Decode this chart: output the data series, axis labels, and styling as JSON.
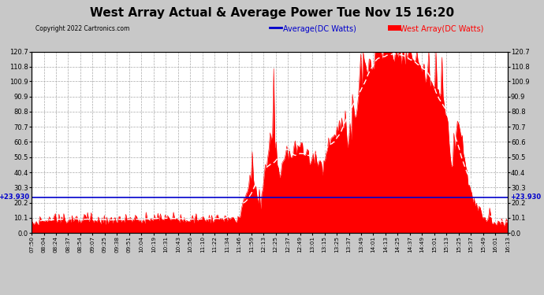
{
  "title": "West Array Actual & Average Power Tue Nov 15 16:20",
  "copyright": "Copyright 2022 Cartronics.com",
  "legend_avg": "Average(DC Watts)",
  "legend_west": "West Array(DC Watts)",
  "legend_avg_color": "#0000cc",
  "legend_west_color": "#ff0000",
  "fill_color": "#ff0000",
  "avg_line_color": "#ffffff",
  "background_color": "#c8c8c8",
  "plot_bg_color": "#ffffff",
  "grid_color": "#aaaaaa",
  "title_fontsize": 11,
  "ylim": [
    0.0,
    120.7
  ],
  "yticks": [
    0.0,
    10.1,
    20.2,
    30.3,
    40.4,
    50.5,
    60.6,
    70.7,
    80.8,
    90.9,
    100.9,
    110.8,
    120.7
  ],
  "ytick_labels": [
    "0.0",
    "10.1",
    "20.2",
    "30.3",
    "40.4",
    "50.5",
    "60.6",
    "70.7",
    "80.8",
    "90.9",
    "100.9",
    "110.8",
    "120.7"
  ],
  "horizontal_line_value": 23.93,
  "horizontal_line_label": "+23.930",
  "x_labels": [
    "07:50",
    "08:04",
    "08:24",
    "08:37",
    "08:54",
    "09:07",
    "09:25",
    "09:38",
    "09:51",
    "10:04",
    "10:19",
    "10:31",
    "10:43",
    "10:56",
    "11:10",
    "11:22",
    "11:34",
    "11:46",
    "11:59",
    "12:13",
    "12:25",
    "12:37",
    "12:49",
    "13:01",
    "13:15",
    "13:25",
    "13:37",
    "13:49",
    "14:01",
    "14:13",
    "14:25",
    "14:37",
    "14:49",
    "15:01",
    "15:13",
    "15:25",
    "15:37",
    "15:49",
    "16:01",
    "16:13"
  ]
}
